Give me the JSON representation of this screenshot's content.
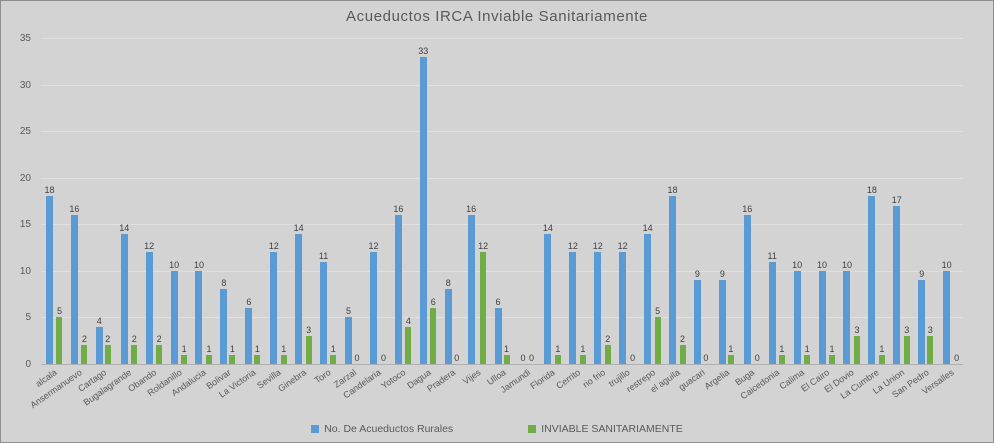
{
  "title": "Acueductos IRCA Inviable Sanitariamente",
  "colors": {
    "background": "#d3d3d3",
    "gridline": "#dfdfdf",
    "axis_line": "#b0b0b0",
    "text": "#595959",
    "data_label": "#404040",
    "series_blue": "#5b9bd5",
    "series_green": "#70ad47"
  },
  "chart_data": {
    "type": "bar",
    "title": "Acueductos IRCA Inviable Sanitariamente",
    "xlabel": "",
    "ylabel": "",
    "ylim": [
      0,
      35
    ],
    "yticks": [
      0,
      5,
      10,
      15,
      20,
      25,
      30,
      35
    ],
    "grid": true,
    "legend_position": "bottom",
    "data_labels": true,
    "categories": [
      "alcala",
      "Ansermanuevo",
      "Cartago",
      "Bugalagrande",
      "Obando",
      "Roldanillo",
      "Andalucia",
      "Bolivar",
      "La Victoria",
      "Sevilla",
      "Ginebra",
      "Toro",
      "Zarzal",
      "Candelaria",
      "Yotoco",
      "Dagua",
      "Pradera",
      "Vijes",
      "Ulloa",
      "Jamundi",
      "Florida",
      "Cerrito",
      "rio frio",
      "trujillo",
      "restrepo",
      "el aguila",
      "guacari",
      "Argelia",
      "Buga",
      "Caicedonia",
      "Calima",
      "El Cairo",
      "El Dovio",
      "La Cumbre",
      "La Union",
      "San Pedro",
      "Versalles"
    ],
    "series": [
      {
        "name": "No. De Acueductos Rurales",
        "color": "#5b9bd5",
        "values": [
          18,
          16,
          4,
          14,
          12,
          10,
          10,
          8,
          6,
          12,
          14,
          11,
          5,
          12,
          16,
          33,
          8,
          16,
          6,
          0,
          14,
          12,
          12,
          12,
          14,
          18,
          9,
          9,
          16,
          11,
          10,
          10,
          10,
          18,
          17,
          9,
          10
        ]
      },
      {
        "name": "INVIABLE SANITARIAMENTE",
        "color": "#70ad47",
        "values": [
          5,
          2,
          2,
          2,
          2,
          1,
          1,
          1,
          1,
          1,
          3,
          1,
          0,
          0,
          4,
          6,
          0,
          12,
          1,
          0,
          1,
          1,
          2,
          0,
          5,
          2,
          0,
          1,
          0,
          1,
          1,
          1,
          3,
          1,
          3,
          3,
          0
        ]
      }
    ]
  }
}
